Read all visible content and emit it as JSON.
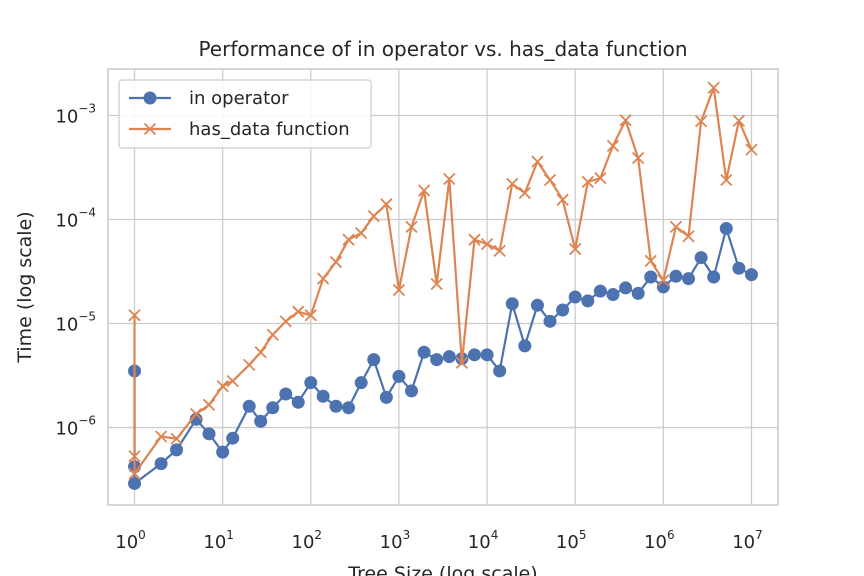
{
  "chart_data": {
    "type": "line",
    "title": "Performance of in operator vs. has_data function",
    "xlabel": "Tree Size (log scale)",
    "ylabel": "Time (log scale)",
    "xscale": "log",
    "yscale": "log",
    "xlim": [
      0.5,
      20000000
    ],
    "ylim": [
      1.8e-07,
      0.0028
    ],
    "grid": true,
    "legend_position": "top-left",
    "x_ticks": [
      {
        "base": "10",
        "exp": "0",
        "value": 1
      },
      {
        "base": "10",
        "exp": "1",
        "value": 10
      },
      {
        "base": "10",
        "exp": "2",
        "value": 100
      },
      {
        "base": "10",
        "exp": "3",
        "value": 1000
      },
      {
        "base": "10",
        "exp": "4",
        "value": 10000
      },
      {
        "base": "10",
        "exp": "5",
        "value": 100000
      },
      {
        "base": "10",
        "exp": "6",
        "value": 1000000
      },
      {
        "base": "10",
        "exp": "7",
        "value": 10000000
      }
    ],
    "y_ticks": [
      {
        "base": "10",
        "exp": "−6",
        "value": 1e-06
      },
      {
        "base": "10",
        "exp": "−5",
        "value": 1e-05
      },
      {
        "base": "10",
        "exp": "−4",
        "value": 0.0001
      },
      {
        "base": "10",
        "exp": "−3",
        "value": 0.001
      }
    ],
    "x": [
      1,
      1,
      1,
      2,
      3,
      5,
      7,
      10,
      13,
      20,
      27,
      37,
      52,
      72,
      100,
      138,
      193,
      268,
      373,
      518,
      720,
      1000,
      1389,
      1930,
      2682,
      3727,
      5179,
      7197,
      10000,
      13895,
      19307,
      26827,
      37276,
      51795,
      71969,
      100000,
      138950,
      193070,
      268270,
      372760,
      517950,
      719690,
      1000000,
      1389500,
      1930700,
      2682700,
      3727600,
      5179500,
      7196900,
      10000000
    ],
    "series": [
      {
        "name": "in operator",
        "color": "#4c72b0",
        "marker": "circle",
        "values": [
          3.5e-06,
          4.2e-07,
          2.9e-07,
          4.5e-07,
          6.1e-07,
          1.2e-06,
          8.7e-07,
          5.8e-07,
          7.9e-07,
          1.6e-06,
          1.15e-06,
          1.55e-06,
          2.1e-06,
          1.75e-06,
          2.7e-06,
          2e-06,
          1.6e-06,
          1.55e-06,
          2.7e-06,
          4.5e-06,
          1.95e-06,
          3.1e-06,
          2.25e-06,
          5.3e-06,
          4.5e-06,
          4.8e-06,
          4.6e-06,
          5e-06,
          5e-06,
          3.5e-06,
          1.55e-05,
          6.1e-06,
          1.5e-05,
          1.05e-05,
          1.35e-05,
          1.8e-05,
          1.65e-05,
          2.05e-05,
          1.9e-05,
          2.2e-05,
          1.95e-05,
          2.8e-05,
          2.25e-05,
          2.85e-05,
          2.7e-05,
          4.3e-05,
          2.8e-05,
          8.2e-05,
          3.4e-05,
          2.95e-05
        ]
      },
      {
        "name": "has_data function",
        "color": "#dd8452",
        "marker": "x",
        "values": [
          1.2e-05,
          5.3e-07,
          3.6e-07,
          8.2e-07,
          7.8e-07,
          1.35e-06,
          1.65e-06,
          2.5e-06,
          2.8e-06,
          4e-06,
          5.3e-06,
          7.8e-06,
          1.05e-05,
          1.3e-05,
          1.2e-05,
          2.7e-05,
          3.9e-05,
          6.4e-05,
          7.4e-05,
          0.000108,
          0.00014,
          2.1e-05,
          8.5e-05,
          0.00019,
          2.4e-05,
          0.000245,
          4.2e-06,
          6.4e-05,
          5.8e-05,
          5e-05,
          0.00022,
          0.00018,
          0.00036,
          0.00024,
          0.000155,
          5.2e-05,
          0.00023,
          0.00025,
          0.00051,
          0.0009,
          0.00039,
          4e-05,
          2.6e-05,
          8.5e-05,
          6.9e-05,
          0.00088,
          0.00185,
          0.00024,
          0.00089,
          0.00047
        ]
      }
    ]
  }
}
